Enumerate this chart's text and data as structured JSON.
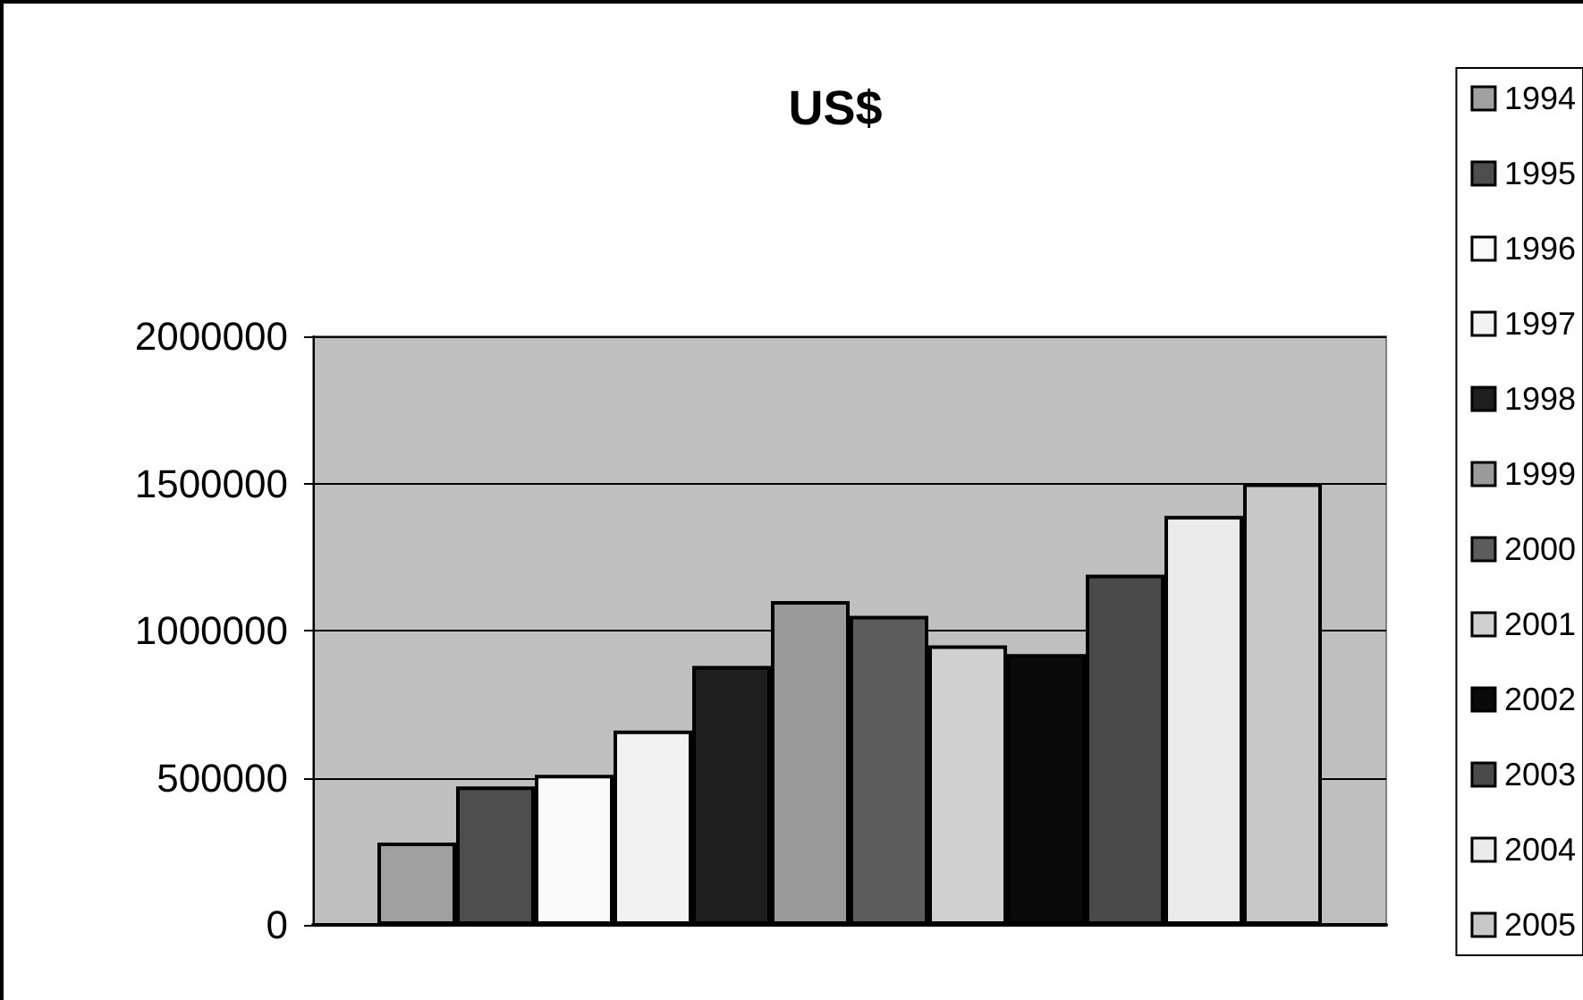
{
  "chart_data": {
    "type": "bar",
    "title": "US$",
    "categories": [
      null
    ],
    "series": [
      {
        "name": "1994",
        "color": "#a0a0a0",
        "values": [
          280000
        ]
      },
      {
        "name": "1995",
        "color": "#4d4d4d",
        "values": [
          470000
        ]
      },
      {
        "name": "1996",
        "color": "#fafafa",
        "values": [
          510000
        ]
      },
      {
        "name": "1997",
        "color": "#f2f2f2",
        "values": [
          660000
        ]
      },
      {
        "name": "1998",
        "color": "#1e1e1e",
        "values": [
          880000
        ]
      },
      {
        "name": "1999",
        "color": "#9a9a9a",
        "values": [
          1100000
        ]
      },
      {
        "name": "2000",
        "color": "#5c5c5c",
        "values": [
          1050000
        ]
      },
      {
        "name": "2001",
        "color": "#d0d0d0",
        "values": [
          950000
        ]
      },
      {
        "name": "2002",
        "color": "#0a0a0a",
        "values": [
          920000
        ]
      },
      {
        "name": "2003",
        "color": "#4a4a4a",
        "values": [
          1190000
        ]
      },
      {
        "name": "2004",
        "color": "#ebebeb",
        "values": [
          1390000
        ]
      },
      {
        "name": "2005",
        "color": "#c8c8c8",
        "values": [
          1500000
        ]
      }
    ],
    "ylim": [
      0,
      2000000
    ],
    "yticks": [
      0,
      500000,
      1000000,
      1500000,
      2000000
    ],
    "grid": "y",
    "legend": "right"
  }
}
